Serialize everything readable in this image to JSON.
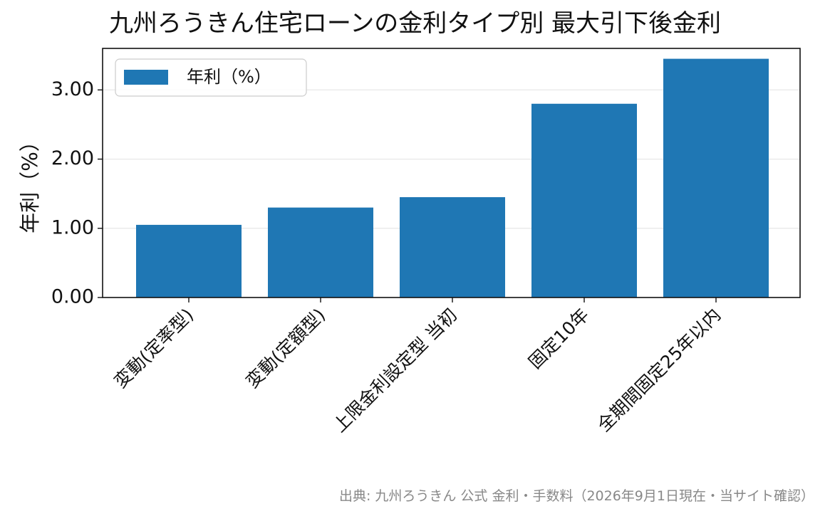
{
  "chart_data": {
    "type": "bar",
    "title": "九州ろうきん住宅ローンの金利タイプ別 最大引下後金利",
    "categories": [
      "変動(定率型)",
      "変動(定額型)",
      "上限金利設定型 当初",
      "固定10年",
      "全期間固定25年以内"
    ],
    "series": [
      {
        "name": "年利（%）",
        "values": [
          1.05,
          1.3,
          1.45,
          2.8,
          3.45
        ],
        "color": "#1f77b4"
      }
    ],
    "xlabel": "",
    "ylabel": "年利（%）",
    "ylim": [
      0,
      3.6
    ],
    "yticks": [
      "0.00",
      "1.00",
      "2.00",
      "3.00"
    ],
    "grid": "y",
    "legend_position": "top-left"
  },
  "source_note": "出典: 九州ろうきん 公式 金利・手数料（2026年9月1日現在・当サイト確認）"
}
